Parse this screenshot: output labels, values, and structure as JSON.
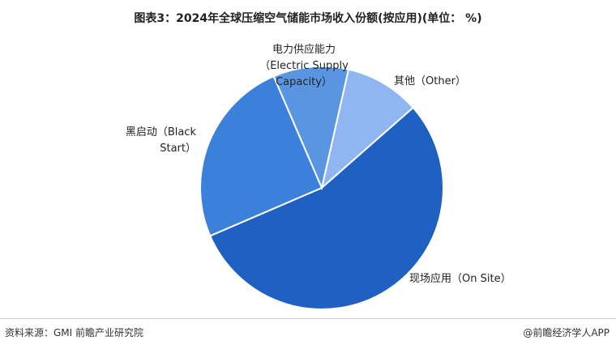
{
  "chart_data": {
    "type": "pie",
    "title": "图表3：2024年全球压缩空气储能市场收入份额(按应用)(单位： %)",
    "categories": [
      "其他（Other）",
      "现场应用（On Site）",
      "黑启动（Black Start）",
      "电力供应能力（Electric Supply Capacity）"
    ],
    "values": [
      10,
      55,
      25,
      10
    ],
    "colors": [
      "#8fb6f0",
      "#1f61c2",
      "#3b80da",
      "#5a95e2"
    ]
  },
  "footer": {
    "source": "资料来源：GMI 前瞻产业研究院",
    "brand": "@前瞻经济学人APP"
  }
}
